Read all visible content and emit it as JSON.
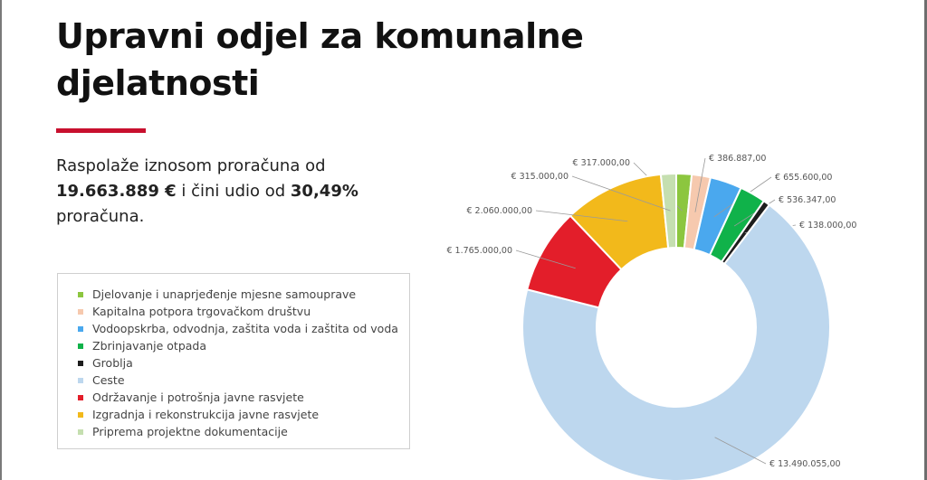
{
  "page": {
    "title": "Upravni odjel za komunalne djelatnosti",
    "summary": {
      "prefix": "Raspolaže iznosom proračuna od",
      "amount": "19.663.889 €",
      "middle": "i čini udio od",
      "share": "30,49%",
      "suffix": "proračuna."
    }
  },
  "chart_data": {
    "type": "pie",
    "variant": "donut",
    "currency_format": "€ #.###,##",
    "legend_position": "left-bottom",
    "start": "top",
    "direction": "clockwise",
    "slices": [
      {
        "name": "Djelovanje i unaprjeđenje mjesne samouprave",
        "value": 317000.0,
        "label": "€ 317.000,00",
        "color": "#8cc63f"
      },
      {
        "name": "Kapitalna potpora trgovačkom društvu",
        "value": 386887.0,
        "label": "€ 386.887,00",
        "color": "#f6c9ae"
      },
      {
        "name": "Vodoopskrba, odvodnja, zaštita voda i zaštita od voda",
        "value": 655600.0,
        "label": "€ 655.600,00",
        "color": "#4aa8ee"
      },
      {
        "name": "Zbrinjavanje otpada",
        "value": 536347.0,
        "label": "€ 536.347,00",
        "color": "#10b24a"
      },
      {
        "name": "Groblja",
        "value": 138000.0,
        "label": "€ 138.000,00",
        "color": "#1d1d1d"
      },
      {
        "name": "Ceste",
        "value": 13490055.0,
        "label": "€ 13.490.055,00",
        "color": "#bdd7ee"
      },
      {
        "name": "Održavanje i potrošnja javne rasvjete",
        "value": 1765000.0,
        "label": "€ 1.765.000,00",
        "color": "#e31e2a"
      },
      {
        "name": "Izgradnja i rekonstrukcija javne rasvjete",
        "value": 2060000.0,
        "label": "€ 2.060.000,00",
        "color": "#f2b91b"
      },
      {
        "name": "Priprema projektne dokumentacije",
        "value": 315000.0,
        "label": "€ 315.000,00",
        "color": "#c5dfb0"
      }
    ]
  }
}
